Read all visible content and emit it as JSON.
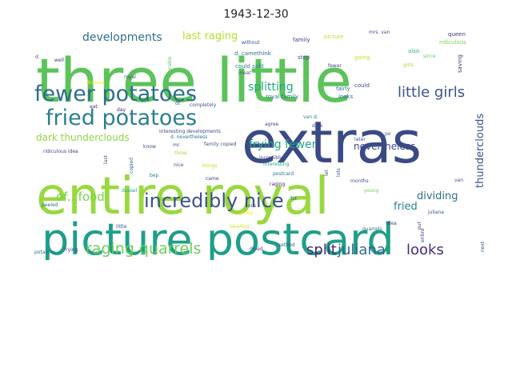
{
  "title": "1943-12-30",
  "words": [
    {
      "text": "three little",
      "color": "#5cc35a"
    },
    {
      "text": "entire royal",
      "color": "#9ad83f"
    },
    {
      "text": "extras",
      "color": "#3a4a86"
    },
    {
      "text": "picture postcard",
      "color": "#1f9e89"
    },
    {
      "text": "fewer potatoes",
      "color": "#2c6e8e"
    },
    {
      "text": "fried potatoes",
      "color": "#2a7f8e"
    },
    {
      "text": "incredibly nice",
      "color": "#3b518b"
    },
    {
      "text": "raging quarrels",
      "color": "#6ece58"
    },
    {
      "text": "little girls",
      "color": "#3b528b"
    },
    {
      "text": "split",
      "color": "#482878"
    },
    {
      "text": "juliana",
      "color": "#31688e"
    },
    {
      "text": "looks",
      "color": "#472c7a"
    },
    {
      "text": "developments",
      "color": "#2d708e"
    },
    {
      "text": "last raging",
      "color": "#b5de2b"
    },
    {
      "text": "splitting",
      "color": "#22a884"
    },
    {
      "text": "frying fewer",
      "color": "#20a486"
    },
    {
      "text": "dark thunderclouds",
      "color": "#8fd744"
    },
    {
      "text": "nevertheless",
      "color": "#3e4a89"
    },
    {
      "text": "thunderclouds",
      "color": "#3b528b"
    },
    {
      "text": "of...food",
      "color": "#7ad151"
    },
    {
      "text": "dividing",
      "color": "#2e6f8e"
    },
    {
      "text": "fried",
      "color": "#27808e"
    },
    {
      "text": "family",
      "color": "#443983"
    },
    {
      "text": "picture",
      "color": "#b5de2b"
    },
    {
      "text": "mrs. van",
      "color": "#3b528b"
    },
    {
      "text": "queen",
      "color": "#46337f"
    },
    {
      "text": "ridiculous",
      "color": "#7ad151"
    },
    {
      "text": "also",
      "color": "#35b779"
    },
    {
      "text": "d. camethink",
      "color": "#2c728e"
    },
    {
      "text": "could split",
      "color": "#2a788e"
    },
    {
      "text": "meat",
      "color": "#365c8d"
    },
    {
      "text": "stop",
      "color": "#3e4989"
    },
    {
      "text": "going",
      "color": "#c2df23"
    },
    {
      "text": "fewer",
      "color": "#3f4889"
    },
    {
      "text": "since",
      "color": "#5ec962"
    },
    {
      "text": "girls",
      "color": "#a0da39"
    },
    {
      "text": "saving",
      "color": "#46307e"
    },
    {
      "text": "royal family",
      "color": "#2b758e"
    },
    {
      "text": "fairly",
      "color": "#31678e"
    },
    {
      "text": "could",
      "color": "#3e4c8a"
    },
    {
      "text": "looks",
      "color": "#2f6c8e"
    },
    {
      "text": "adorable",
      "color": "#5ec962"
    },
    {
      "text": "royal",
      "color": "#3b528b"
    },
    {
      "text": "dresses",
      "color": "#fde725"
    },
    {
      "text": "completely",
      "color": "#3b528b"
    },
    {
      "text": "agree",
      "color": "#433e85"
    },
    {
      "text": "dark",
      "color": "#414287"
    },
    {
      "text": "van d.",
      "color": "#26828e"
    },
    {
      "text": "interesting developments",
      "color": "#3e4989"
    },
    {
      "text": "d. nevertheless",
      "color": "#2c718e"
    },
    {
      "text": "family copied",
      "color": "#3b528b"
    },
    {
      "text": "incredibly",
      "color": "#443a83"
    },
    {
      "text": "interesting",
      "color": "#20a386"
    },
    {
      "text": "postcard",
      "color": "#2e6e8e"
    },
    {
      "text": "raging",
      "color": "#481b6d"
    },
    {
      "text": "ridiculous idea",
      "color": "#414487"
    },
    {
      "text": "know",
      "color": "#3e4c8a"
    },
    {
      "text": "three",
      "color": "#a2da37"
    },
    {
      "text": "things",
      "color": "#b8de29"
    },
    {
      "text": "nice",
      "color": "#3b528b"
    },
    {
      "text": "copied",
      "color": "#31668e"
    },
    {
      "text": "bep",
      "color": "#26818e"
    },
    {
      "text": "came",
      "color": "#414487"
    },
    {
      "text": "oils",
      "color": "#3e4c8a"
    },
    {
      "text": "soup",
      "color": "#fde725"
    },
    {
      "text": "heading",
      "color": "#d2e21b"
    },
    {
      "text": "dussel",
      "color": "#1fa188"
    },
    {
      "text": "little",
      "color": "#3b528b"
    },
    {
      "text": "peeled",
      "color": "#2e6d8e"
    },
    {
      "text": "potatoes",
      "color": "#2f6c8e"
    },
    {
      "text": "frying",
      "color": "#3e4a89"
    },
    {
      "text": "doled",
      "color": "#3b528b"
    },
    {
      "text": "settled",
      "color": "#33638d"
    },
    {
      "text": "months",
      "color": "#3b528b"
    },
    {
      "text": "young",
      "color": "#6ece58"
    },
    {
      "text": "idea",
      "color": "#443983"
    },
    {
      "text": "quarrels",
      "color": "#31688e"
    },
    {
      "text": "juliana",
      "color": "#3b528b"
    },
    {
      "text": "entire",
      "color": "#414487"
    },
    {
      "text": "later",
      "color": "#3b528b"
    },
    {
      "text": "put",
      "color": "#3e4989"
    },
    {
      "text": "van",
      "color": "#3e4a89"
    },
    {
      "text": "next",
      "color": "#3b528b"
    },
    {
      "text": "well",
      "color": "#46337f"
    },
    {
      "text": "eat",
      "color": "#46337f"
    },
    {
      "text": "day",
      "color": "#482475"
    },
    {
      "text": "last",
      "color": "#3b528b"
    },
    {
      "text": "fat",
      "color": "#2c728e"
    },
    {
      "text": "without",
      "color": "#3b528b"
    },
    {
      "text": "mr.",
      "color": "#3b528b"
    },
    {
      "text": "let",
      "color": "#3b528b"
    },
    {
      "text": "lots",
      "color": "#3b528b"
    },
    {
      "text": "po",
      "color": "#3b528b"
    },
    {
      "text": "d.",
      "color": "#3b528b"
    },
    {
      "text": "ot",
      "color": "#3b528b"
    }
  ]
}
